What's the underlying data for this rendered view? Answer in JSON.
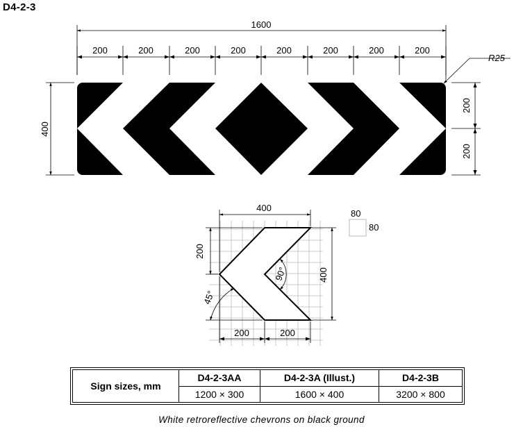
{
  "sign_code": "D4-2-3",
  "top_dims": {
    "overall_width": "1600",
    "segments": [
      "200",
      "200",
      "200",
      "200",
      "200",
      "200",
      "200",
      "200"
    ],
    "corner_radius": "R25",
    "height": "400",
    "right_segments": [
      "200",
      "200"
    ]
  },
  "chevron_detail": {
    "width": "400",
    "arm_height": "200",
    "total_height": "400",
    "bottom_segments": [
      "200",
      "200"
    ],
    "outer_angle": "45°",
    "inner_angle": "90°",
    "grid_legend": {
      "top": "80",
      "right": "80"
    }
  },
  "sizes_table": {
    "header": "Sign sizes, mm",
    "columns": [
      {
        "code": "D4-2-3AA",
        "size": "1200 × 300"
      },
      {
        "code": "D4-2-3A (Illust.)",
        "size": "1600 × 400"
      },
      {
        "code": "D4-2-3B",
        "size": "3200 × 800"
      }
    ]
  },
  "caption": "White retroreflective chevrons on black ground",
  "colors": {
    "ground": "#000000",
    "chevron": "#ffffff",
    "grid": "#bbbbbb"
  }
}
